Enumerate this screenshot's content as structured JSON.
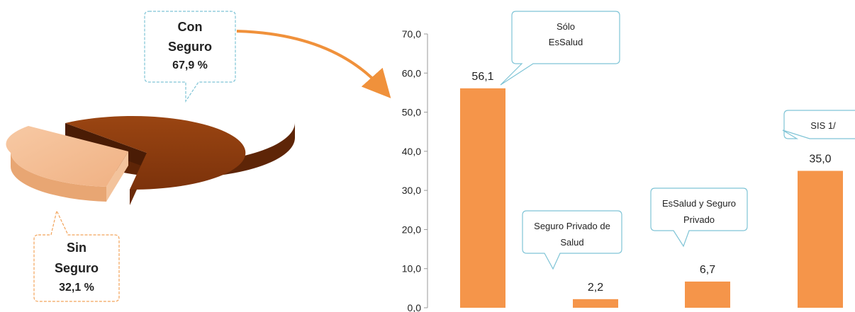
{
  "pie": {
    "colors": {
      "con": "#8b3a0e",
      "con_side": "#5a2206",
      "sin": "#f2b98c",
      "sin_side": "#e7a772",
      "callout_con_border": "#7fc4d6",
      "callout_sin_border": "#f2a35a",
      "arrow": "#f0913b"
    },
    "slices": [
      {
        "name": "Con Seguro",
        "value": 67.9
      },
      {
        "name": "Sin Seguro",
        "value": 32.1
      }
    ],
    "callout_con": {
      "line1": "Con",
      "line2": "Seguro",
      "value": "67,9 %"
    },
    "callout_sin": {
      "line1": "Sin",
      "line2": "Seguro",
      "value": "32,1 %"
    }
  },
  "chart_data": {
    "type": "bar",
    "categories": [
      "Sólo EsSalud",
      "Seguro Privado de Salud",
      "EsSalud y Seguro Privado",
      "SIS 1/"
    ],
    "values": [
      56.1,
      2.2,
      6.7,
      35.0
    ],
    "value_labels": [
      "56,1",
      "2,2",
      "6,7",
      "35,0"
    ],
    "ylim": [
      0,
      70
    ],
    "yticks": [
      "0,0",
      "10,0",
      "20,0",
      "30,0",
      "40,0",
      "50,0",
      "60,0",
      "70,0"
    ],
    "bar_color": "#f5954a",
    "callouts": [
      {
        "lines": [
          "Sólo",
          "EsSalud"
        ]
      },
      {
        "lines": [
          "Seguro Privado de",
          "Salud"
        ]
      },
      {
        "lines": [
          "EsSalud y Seguro",
          "Privado"
        ]
      },
      {
        "lines": [
          "SIS  1/"
        ]
      }
    ]
  }
}
